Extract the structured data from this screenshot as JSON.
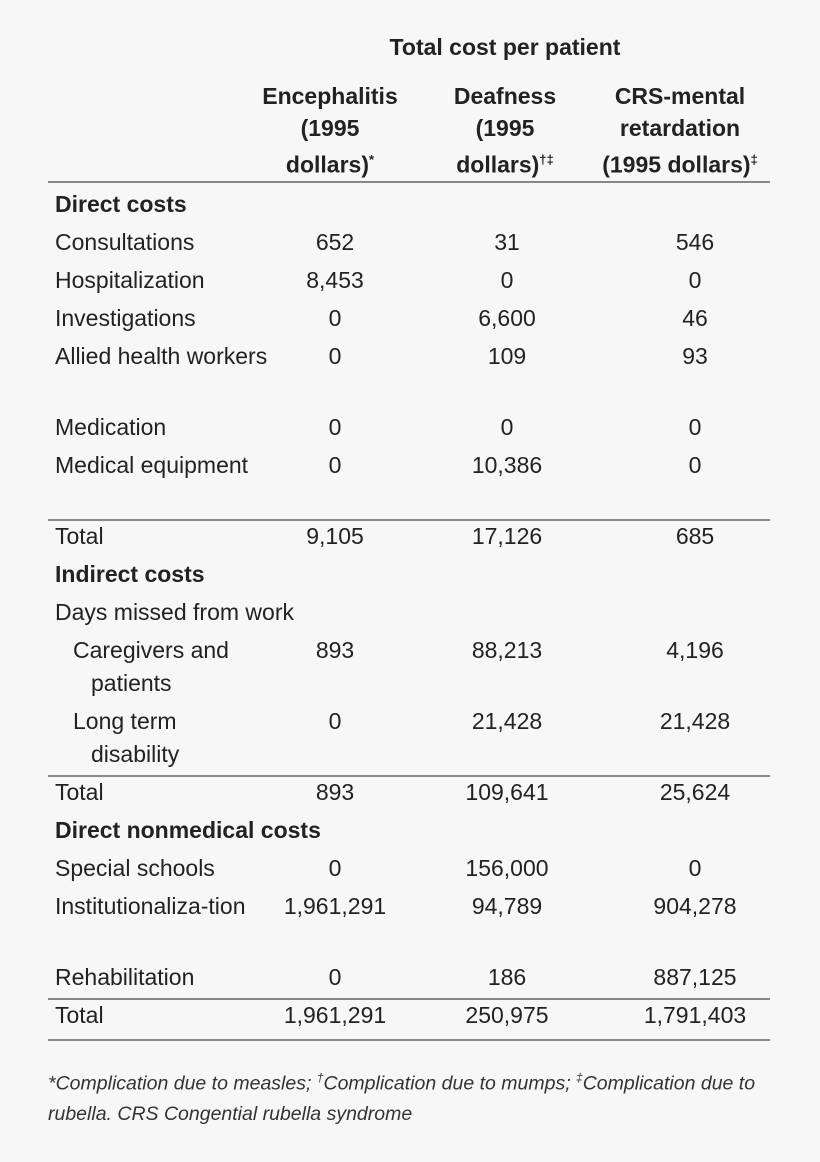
{
  "title": "Total cost per patient",
  "columns": [
    {
      "line1": "Encephalitis",
      "line2": "(1995",
      "line3": "dollars)",
      "mark": "*"
    },
    {
      "line1": "Deafness",
      "line2": "(1995",
      "line3": "dollars)",
      "mark": "†‡"
    },
    {
      "line1": "CRS-mental",
      "line2": "retardation",
      "line3": "(1995 dollars)",
      "mark": "‡"
    }
  ],
  "rows": [
    {
      "type": "section",
      "label": "Direct costs",
      "values": []
    },
    {
      "type": "item",
      "level": 0,
      "label": "Consultations",
      "values": [
        "652",
        "31",
        "546"
      ]
    },
    {
      "type": "item",
      "level": 0,
      "label": "Hospitalization",
      "values": [
        "8,453",
        "0",
        "0"
      ]
    },
    {
      "type": "item",
      "level": 0,
      "label": "Investigations",
      "values": [
        "0",
        "6,600",
        "46"
      ]
    },
    {
      "type": "item",
      "level": 0,
      "label": "Allied health workers",
      "lines": 2,
      "values": [
        "0",
        "109",
        "93"
      ]
    },
    {
      "type": "item",
      "level": 0,
      "label": "Medication",
      "values": [
        "0",
        "0",
        "0"
      ]
    },
    {
      "type": "item",
      "level": 0,
      "label": "Medical equipment",
      "lines": 2,
      "values": [
        "0",
        "10,386",
        "0"
      ]
    },
    {
      "type": "total",
      "label": "Total",
      "values": [
        "9,105",
        "17,126",
        "685"
      ]
    },
    {
      "type": "section",
      "label": "Indirect costs",
      "values": []
    },
    {
      "type": "subhead",
      "label": "Days missed from work",
      "values": []
    },
    {
      "type": "item",
      "level": 1,
      "label": "Caregivers and patients",
      "lines": 2,
      "values": [
        "893",
        "88,213",
        "4,196"
      ]
    },
    {
      "type": "item",
      "level": 1,
      "label": "Long term disability",
      "lines": 2,
      "values": [
        "0",
        "21,428",
        "21,428"
      ]
    },
    {
      "type": "total",
      "label": "Total",
      "values": [
        "893",
        "109,641",
        "25,624"
      ]
    },
    {
      "type": "section",
      "label": "Direct nonmedical costs",
      "values": []
    },
    {
      "type": "item",
      "level": 0,
      "label": "Special schools",
      "values": [
        "0",
        "156,000",
        "0"
      ]
    },
    {
      "type": "item",
      "level": 0,
      "label": "Institutionaliza-tion",
      "lines": 2,
      "values": [
        "1,961,291",
        "94,789",
        "904,278"
      ]
    },
    {
      "type": "item",
      "level": 0,
      "label": "Rehabilitation",
      "values": [
        "0",
        "186",
        "887,125"
      ]
    },
    {
      "type": "total",
      "label": "Total",
      "values": [
        "1,961,291",
        "250,975",
        "1,791,403"
      ]
    }
  ],
  "footnote": {
    "m1": "*",
    "t1": "Complication due to measles; ",
    "m2": "†",
    "t2": "Complication due to mumps; ",
    "m3": "‡",
    "t3": "Complication due to rubella. CRS Congential rubella syndrome"
  }
}
